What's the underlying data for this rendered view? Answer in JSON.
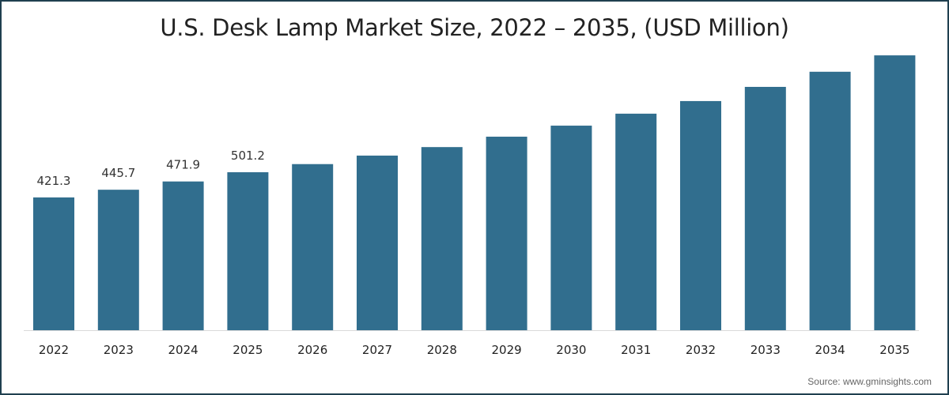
{
  "chart_data": {
    "type": "bar",
    "title": "U.S. Desk Lamp Market Size, 2022 – 2035, (USD Million)",
    "xlabel": "",
    "ylabel": "",
    "categories": [
      "2022",
      "2023",
      "2024",
      "2025",
      "2026",
      "2027",
      "2028",
      "2029",
      "2030",
      "2031",
      "2032",
      "2033",
      "2034",
      "2035"
    ],
    "values": [
      421.3,
      445.7,
      471.9,
      501.2,
      527,
      554,
      581,
      614,
      649,
      687,
      727,
      772,
      820,
      872
    ],
    "data_labels": [
      "421.3",
      "445.7",
      "471.9",
      "501.2",
      null,
      null,
      null,
      null,
      null,
      null,
      null,
      null,
      null,
      null
    ],
    "ylim": [
      0,
      1000
    ],
    "grid": false,
    "bar_color": "#316e8e",
    "source": "Source: www.gminsights.com"
  }
}
